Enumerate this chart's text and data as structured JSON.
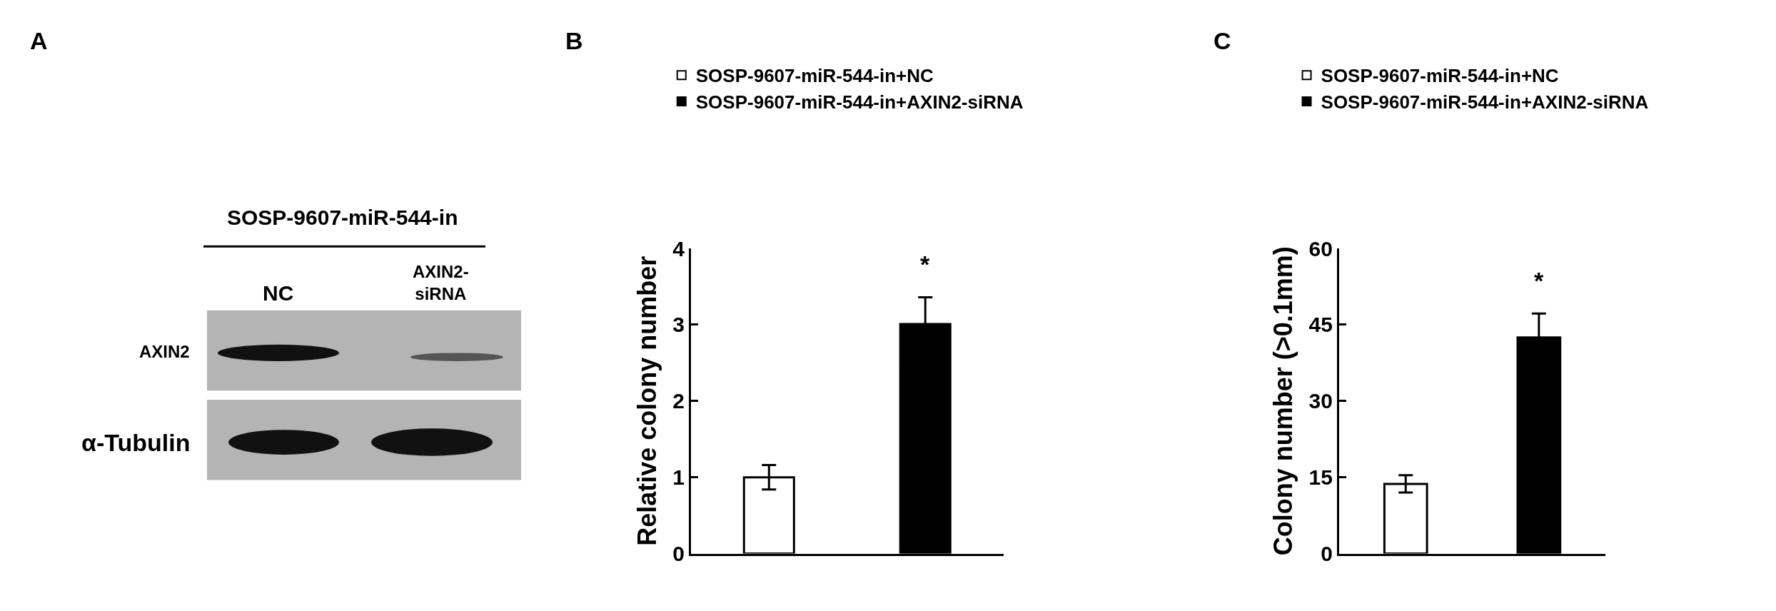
{
  "chart_data": [
    {
      "type": "other",
      "title": "A",
      "annotations": [
        "SOSP-9607-miR-544-in",
        "NC",
        "AXIN2-siRNA",
        "AXIN2",
        "α-Tubulin"
      ]
    },
    {
      "type": "bar",
      "title": "B",
      "ylabel": "Relative colony number",
      "categories": [
        null,
        null
      ],
      "series": [
        {
          "name": "SOSP-9607-miR-544-in+NC",
          "color": "#ffffff",
          "values": [
            1.0,
            null
          ],
          "errors": [
            0.16,
            null
          ]
        },
        {
          "name": "SOSP-9607-miR-544-in+AXIN2-siRNA",
          "color": "#000000",
          "values": [
            null,
            3.01
          ],
          "errors": [
            null,
            0.35
          ]
        }
      ],
      "ylim": [
        0,
        4
      ],
      "yticks": [
        0,
        1,
        2,
        3,
        4
      ],
      "legend": "top",
      "annotations": [
        "*"
      ]
    },
    {
      "type": "bar",
      "title": "C",
      "ylabel": "Colony number (>0.1mm)",
      "categories": [
        null,
        null
      ],
      "series": [
        {
          "name": "SOSP-9607-miR-544-in+NC",
          "color": "#ffffff",
          "values": [
            13.7,
            null
          ],
          "errors": [
            1.7,
            null
          ]
        },
        {
          "name": "SOSP-9607-miR-544-in+AXIN2-siRNA",
          "color": "#000000",
          "values": [
            null,
            42.5
          ],
          "errors": [
            null,
            4.7
          ]
        }
      ],
      "ylim": [
        0,
        60
      ],
      "yticks": [
        0,
        15,
        30,
        45,
        60
      ],
      "legend": "top",
      "annotations": [
        "*"
      ]
    }
  ]
}
